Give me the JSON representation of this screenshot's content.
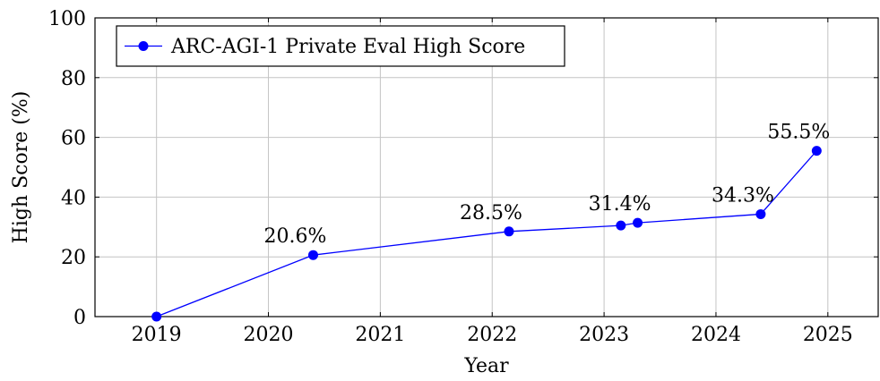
{
  "chart_data": {
    "type": "line",
    "xlabel": "Year",
    "ylabel": "High Score (%)",
    "xlim": [
      2018.45,
      2025.45
    ],
    "ylim": [
      0,
      100
    ],
    "x_ticks": [
      "2019",
      "2020",
      "2021",
      "2022",
      "2023",
      "2024",
      "2025"
    ],
    "y_ticks": [
      "0",
      "20",
      "40",
      "60",
      "80",
      "100"
    ],
    "grid": true,
    "legend_position": "top-left",
    "series": [
      {
        "name": "ARC-AGI-1 Private Eval High Score",
        "color": "#0000ff",
        "points": [
          {
            "x": 2019.0,
            "y": 0
          },
          {
            "x": 2020.4,
            "y": 20.6
          },
          {
            "x": 2022.15,
            "y": 28.5
          },
          {
            "x": 2023.15,
            "y": 30.5
          },
          {
            "x": 2023.3,
            "y": 31.4
          },
          {
            "x": 2024.4,
            "y": 34.3
          },
          {
            "x": 2024.9,
            "y": 55.5
          }
        ]
      }
    ],
    "annotations": [
      {
        "text": "20.6%",
        "point_index": 1
      },
      {
        "text": "28.5%",
        "point_index": 2
      },
      {
        "text": "31.4%",
        "point_index": 4
      },
      {
        "text": "34.3%",
        "point_index": 5
      },
      {
        "text": "55.5%",
        "point_index": 6
      }
    ]
  }
}
